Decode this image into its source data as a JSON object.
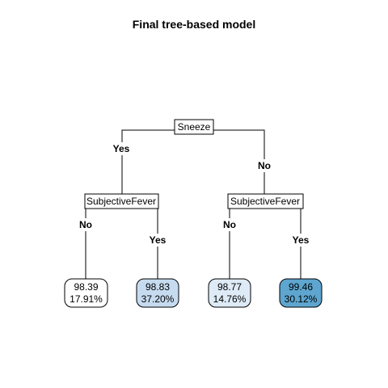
{
  "title": "Final tree-based model",
  "root": {
    "label": "Sneeze",
    "yes": "Yes",
    "no": "No"
  },
  "left_split": {
    "label": "SubjectiveFever",
    "no": "No",
    "yes": "Yes"
  },
  "right_split": {
    "label": "SubjectiveFever",
    "no": "No",
    "yes": "Yes"
  },
  "leaves": [
    {
      "value": "98.39",
      "percent": "17.91%",
      "fill": "#ffffff"
    },
    {
      "value": "98.83",
      "percent": "37.20%",
      "fill": "#c6dbef"
    },
    {
      "value": "98.77",
      "percent": "14.76%",
      "fill": "#deebf7"
    },
    {
      "value": "99.46",
      "percent": "30.12%",
      "fill": "#5ea6cf"
    }
  ]
}
